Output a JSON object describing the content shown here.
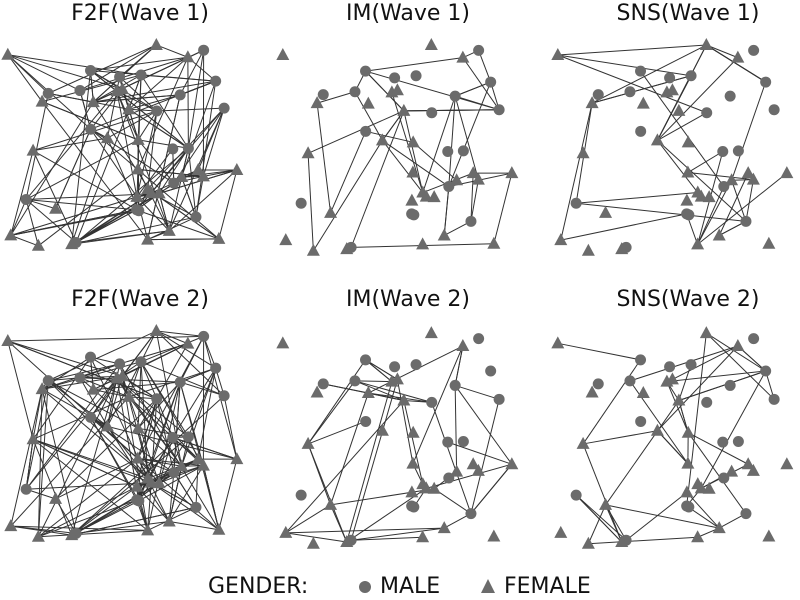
{
  "panels": [
    {
      "title": "F2F(Wave 1)"
    },
    {
      "title": "IM(Wave 1)"
    },
    {
      "title": "SNS(Wave 1)"
    },
    {
      "title": "F2F(Wave 2)"
    },
    {
      "title": "IM(Wave 2)"
    },
    {
      "title": "SNS(Wave 2)"
    }
  ],
  "legend": {
    "title": "GENDER:",
    "items": [
      "MALE",
      "FEMALE"
    ]
  }
}
